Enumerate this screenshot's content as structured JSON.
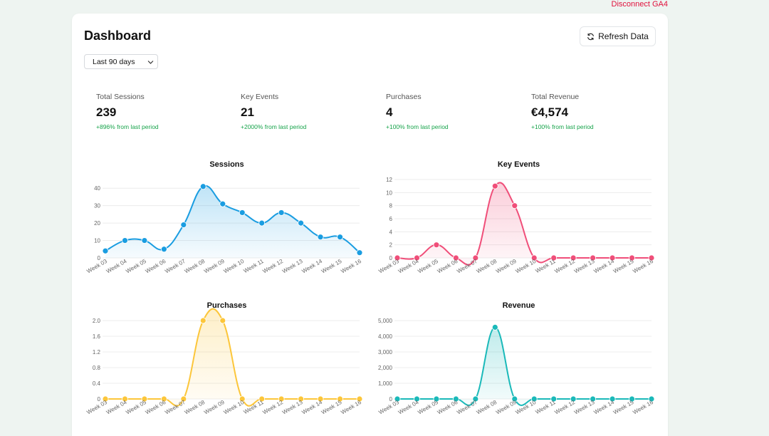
{
  "header": {
    "disconnect_label": "Disconnect GA4",
    "title": "Dashboard",
    "refresh_label": "Refresh Data"
  },
  "filter": {
    "selected": "Last 90 days"
  },
  "stats": [
    {
      "label": "Total Sessions",
      "value": "239",
      "change": "+896% from last period"
    },
    {
      "label": "Key Events",
      "value": "21",
      "change": "+2000% from last period"
    },
    {
      "label": "Purchases",
      "value": "4",
      "change": "+100% from last period"
    },
    {
      "label": "Total Revenue",
      "value": "€4,574",
      "change": "+100% from last period"
    }
  ],
  "colors": {
    "sessions": "#1a9de1",
    "key_events": "#f04e79",
    "purchases": "#fcc63a",
    "revenue": "#1ab9b9",
    "positive": "#16a34a",
    "danger": "#e0103c"
  },
  "chart_data": [
    {
      "type": "line",
      "title": "Sessions",
      "categories": [
        "Week 03",
        "Week 04",
        "Week 05",
        "Week 06",
        "Week 07",
        "Week 08",
        "Week 09",
        "Week 10",
        "Week 11",
        "Week 12",
        "Week 13",
        "Week 14",
        "Week 15",
        "Week 16"
      ],
      "values": [
        4,
        10,
        10,
        5,
        19,
        41,
        31,
        26,
        20,
        26,
        20,
        12,
        12,
        3
      ],
      "ylim": [
        0,
        45
      ],
      "yticks": [
        0,
        10,
        20,
        30,
        40
      ],
      "ytick_labels": [
        "0",
        "10",
        "20",
        "30",
        "40"
      ],
      "color": "#1a9de1",
      "fill": true
    },
    {
      "type": "line",
      "title": "Key Events",
      "categories": [
        "Week 03",
        "Week 04",
        "Week 05",
        "Week 06",
        "Week 07",
        "Week 08",
        "Week 09",
        "Week 10",
        "Week 11",
        "Week 12",
        "Week 13",
        "Week 14",
        "Week 15",
        "Week 16"
      ],
      "values": [
        0,
        0,
        2,
        0,
        0,
        11,
        8,
        0,
        0,
        0,
        0,
        0,
        0,
        0
      ],
      "ylim": [
        0,
        12
      ],
      "yticks": [
        0,
        2,
        4,
        6,
        8,
        10,
        12
      ],
      "ytick_labels": [
        "0",
        "2",
        "4",
        "6",
        "8",
        "10",
        "12"
      ],
      "color": "#f04e79",
      "fill": true
    },
    {
      "type": "line",
      "title": "Purchases",
      "categories": [
        "Week 03",
        "Week 04",
        "Week 05",
        "Week 06",
        "Week 07",
        "Week 08",
        "Week 09",
        "Week 10",
        "Week 11",
        "Week 12",
        "Week 13",
        "Week 14",
        "Week 15",
        "Week 16"
      ],
      "values": [
        0,
        0,
        0,
        0,
        0,
        2,
        2,
        0,
        0,
        0,
        0,
        0,
        0,
        0
      ],
      "ylim": [
        0,
        2
      ],
      "yticks": [
        0,
        0.4,
        0.8,
        1.2,
        1.6,
        2.0
      ],
      "ytick_labels": [
        "0",
        "0.4",
        "0.8",
        "1.2",
        "1.6",
        "2.0"
      ],
      "color": "#fcc63a",
      "fill": true
    },
    {
      "type": "line",
      "title": "Revenue",
      "categories": [
        "Week 03",
        "Week 04",
        "Week 05",
        "Week 06",
        "Week 07",
        "Week 08",
        "Week 09",
        "Week 10",
        "Week 11",
        "Week 12",
        "Week 13",
        "Week 14",
        "Week 15",
        "Week 16"
      ],
      "values": [
        0,
        0,
        0,
        0,
        0,
        4574,
        0,
        0,
        0,
        0,
        0,
        0,
        0,
        0
      ],
      "ylim": [
        0,
        5000
      ],
      "yticks": [
        0,
        1000,
        2000,
        3000,
        4000,
        5000
      ],
      "ytick_labels": [
        "0",
        "1,000",
        "2,000",
        "3,000",
        "4,000",
        "5,000"
      ],
      "color": "#1ab9b9",
      "fill": true
    }
  ]
}
